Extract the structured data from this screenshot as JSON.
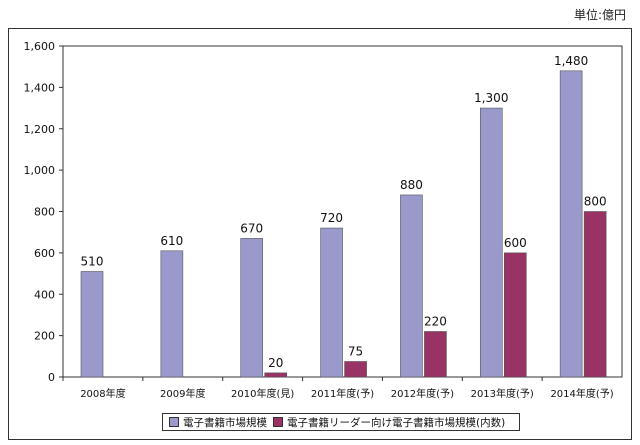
{
  "unit_label": "単位:億円",
  "colors": {
    "series1": "#9999cc",
    "series2": "#993366"
  },
  "chart_data": {
    "type": "bar",
    "categories": [
      "2008年度",
      "2009年度",
      "2010年度(見)",
      "2011年度(予)",
      "2012年度(予)",
      "2013年度(予)",
      "2014年度(予)"
    ],
    "series": [
      {
        "name": "電子書籍市場規模",
        "values": [
          510,
          610,
          670,
          720,
          880,
          1300,
          1480
        ],
        "labels": [
          "510",
          "610",
          "670",
          "720",
          "880",
          "1,300",
          "1,480"
        ]
      },
      {
        "name": "電子書籍リーダー向け電子書籍市場規模(内数)",
        "values": [
          null,
          null,
          20,
          75,
          220,
          600,
          800
        ],
        "labels": [
          "",
          "",
          "20",
          "75",
          "220",
          "600",
          "800"
        ]
      }
    ],
    "ylim": [
      0,
      1600
    ],
    "yticks": [
      "0",
      "200",
      "400",
      "600",
      "800",
      "1,000",
      "1,200",
      "1,400",
      "1,600"
    ],
    "grid": false,
    "legend_position": "bottom"
  }
}
